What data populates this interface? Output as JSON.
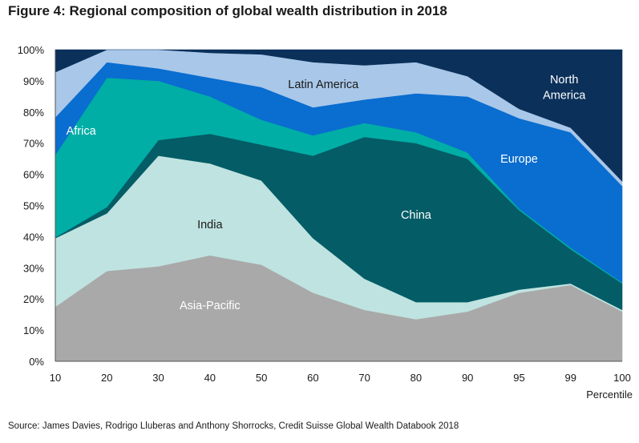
{
  "title": "Figure 4: Regional composition of global wealth distribution in 2018",
  "source": "Source: James Davies, Rodrigo Lluberas and Anthony Shorrocks, Credit Suisse Global Wealth Databook 2018",
  "chart_data": {
    "type": "area",
    "stacked": true,
    "x": [
      10,
      20,
      30,
      40,
      50,
      60,
      70,
      80,
      90,
      95,
      99,
      100
    ],
    "x_tick_labels": [
      "10",
      "20",
      "30",
      "40",
      "50",
      "60",
      "70",
      "80",
      "90",
      "95",
      "99",
      "100"
    ],
    "xlabel": "Percentile",
    "ylabel": "",
    "ylim": [
      0,
      100
    ],
    "y_tick_labels": [
      "0%",
      "10%",
      "20%",
      "30%",
      "40%",
      "50%",
      "60%",
      "70%",
      "80%",
      "90%",
      "100%"
    ],
    "grid": false,
    "legend": "none",
    "series": [
      {
        "name": "Asia-Pacific",
        "color": "#a9a9a9",
        "label_color": "#ffffff",
        "values": [
          17.5,
          29,
          30.5,
          34,
          31,
          22,
          16.5,
          13.5,
          16,
          22,
          24.5,
          16
        ]
      },
      {
        "name": "India",
        "color": "#bfe3e0",
        "label_color": "#1a1a1a",
        "values": [
          22,
          18.5,
          35.5,
          29.5,
          27,
          17.5,
          10,
          5.5,
          3,
          1,
          0.5,
          0.5
        ]
      },
      {
        "name": "China",
        "color": "#035c66",
        "label_color": "#ffffff",
        "values": [
          0.3,
          2,
          5,
          9.5,
          11.5,
          26.5,
          45.5,
          51,
          46,
          25.5,
          11,
          8.5
        ]
      },
      {
        "name": "Africa",
        "color": "#00aea5",
        "label_color": "#ffffff",
        "values": [
          26.5,
          41.5,
          19,
          12,
          8,
          6.5,
          4.5,
          3.5,
          2,
          0.5,
          0.5,
          0.3
        ]
      },
      {
        "name": "Europe",
        "color": "#0a6dd0",
        "label_color": "#ffffff",
        "values": [
          12,
          5,
          4,
          6,
          10.5,
          9,
          7.5,
          12.5,
          18,
          29,
          37,
          31
        ]
      },
      {
        "name": "Latin America",
        "color": "#a9c7e8",
        "label_color": "#1a1a1a",
        "values": [
          14.5,
          4,
          6,
          8,
          10.5,
          14.5,
          11,
          10,
          6.5,
          3,
          1.5,
          1.5
        ]
      },
      {
        "name": "North America",
        "color": "#0b305a",
        "label_color": "#ffffff",
        "values": [
          7.2,
          0,
          0,
          1,
          1.5,
          4,
          5,
          4,
          8.5,
          19,
          25,
          42.2
        ]
      }
    ],
    "labels": [
      {
        "series": "Asia-Pacific",
        "text": "Asia-Pacific",
        "x": 40,
        "y": 18
      },
      {
        "series": "India",
        "text": "India",
        "x": 40,
        "y": 44
      },
      {
        "series": "China",
        "text": "China",
        "x": 80,
        "y": 47
      },
      {
        "series": "Africa",
        "text": "Africa",
        "x": 15,
        "y": 74
      },
      {
        "series": "Europe",
        "text": "Europe",
        "x": 95,
        "y": 65
      },
      {
        "series": "Latin America",
        "text": "Latin America",
        "x": 62,
        "y": 89
      },
      {
        "series": "North America",
        "text": "North",
        "x": 98.5,
        "y": 90.5
      },
      {
        "series": "North America",
        "text": "America",
        "x": 98.5,
        "y": 85.5
      }
    ]
  }
}
